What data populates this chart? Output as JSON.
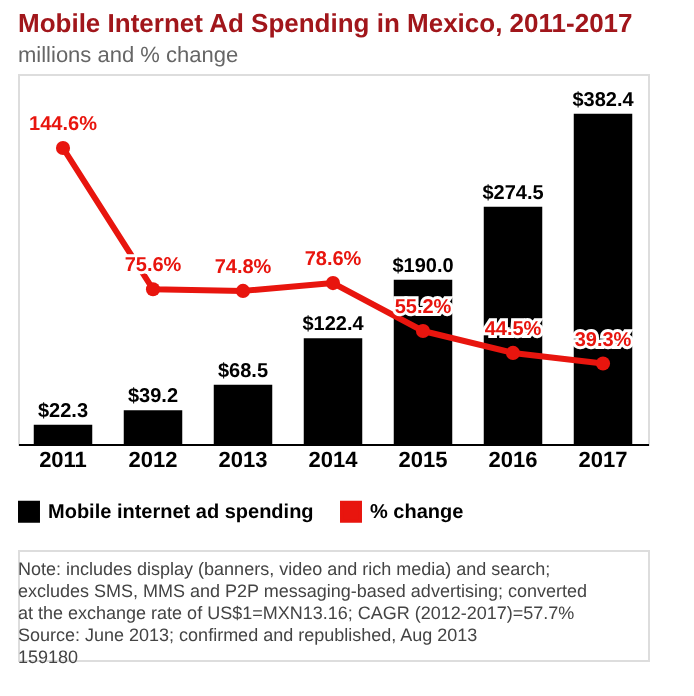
{
  "chart_data": {
    "type": "bar",
    "title": "Mobile Internet Ad Spending in Mexico, 2011-2017",
    "subtitle": "millions and % change",
    "categories": [
      "2011",
      "2012",
      "2013",
      "2014",
      "2015",
      "2016",
      "2017"
    ],
    "series": [
      {
        "name": "Mobile internet ad spending",
        "color": "#000000",
        "values": [
          22.3,
          39.2,
          68.5,
          122.4,
          190.0,
          274.5,
          382.4
        ],
        "value_labels": [
          "$22.3",
          "$39.2",
          "$68.5",
          "$122.4",
          "$190.0",
          "$274.5",
          "$382.4"
        ]
      },
      {
        "name": "% change",
        "type": "line",
        "axis": "y2",
        "color": "#e8150e",
        "marker": "circle",
        "values": [
          144.6,
          75.6,
          74.8,
          78.6,
          55.2,
          44.5,
          39.3
        ],
        "value_labels": [
          "144.6%",
          "75.6%",
          "74.8%",
          "78.6%",
          "55.2%",
          "44.5%",
          "39.3%"
        ]
      }
    ],
    "legend": "bottom",
    "grid": false,
    "annotations": [
      "Note: includes display (banners, video and rich media) and search; excludes SMS, MMS and P2P messaging-based advertising; converted at the exchange rate of US$1=MXN13.16; CAGR (2012-2017)=57.7%",
      "Source: June 2013; confirmed and republished, Aug 2013",
      "159180"
    ]
  }
}
